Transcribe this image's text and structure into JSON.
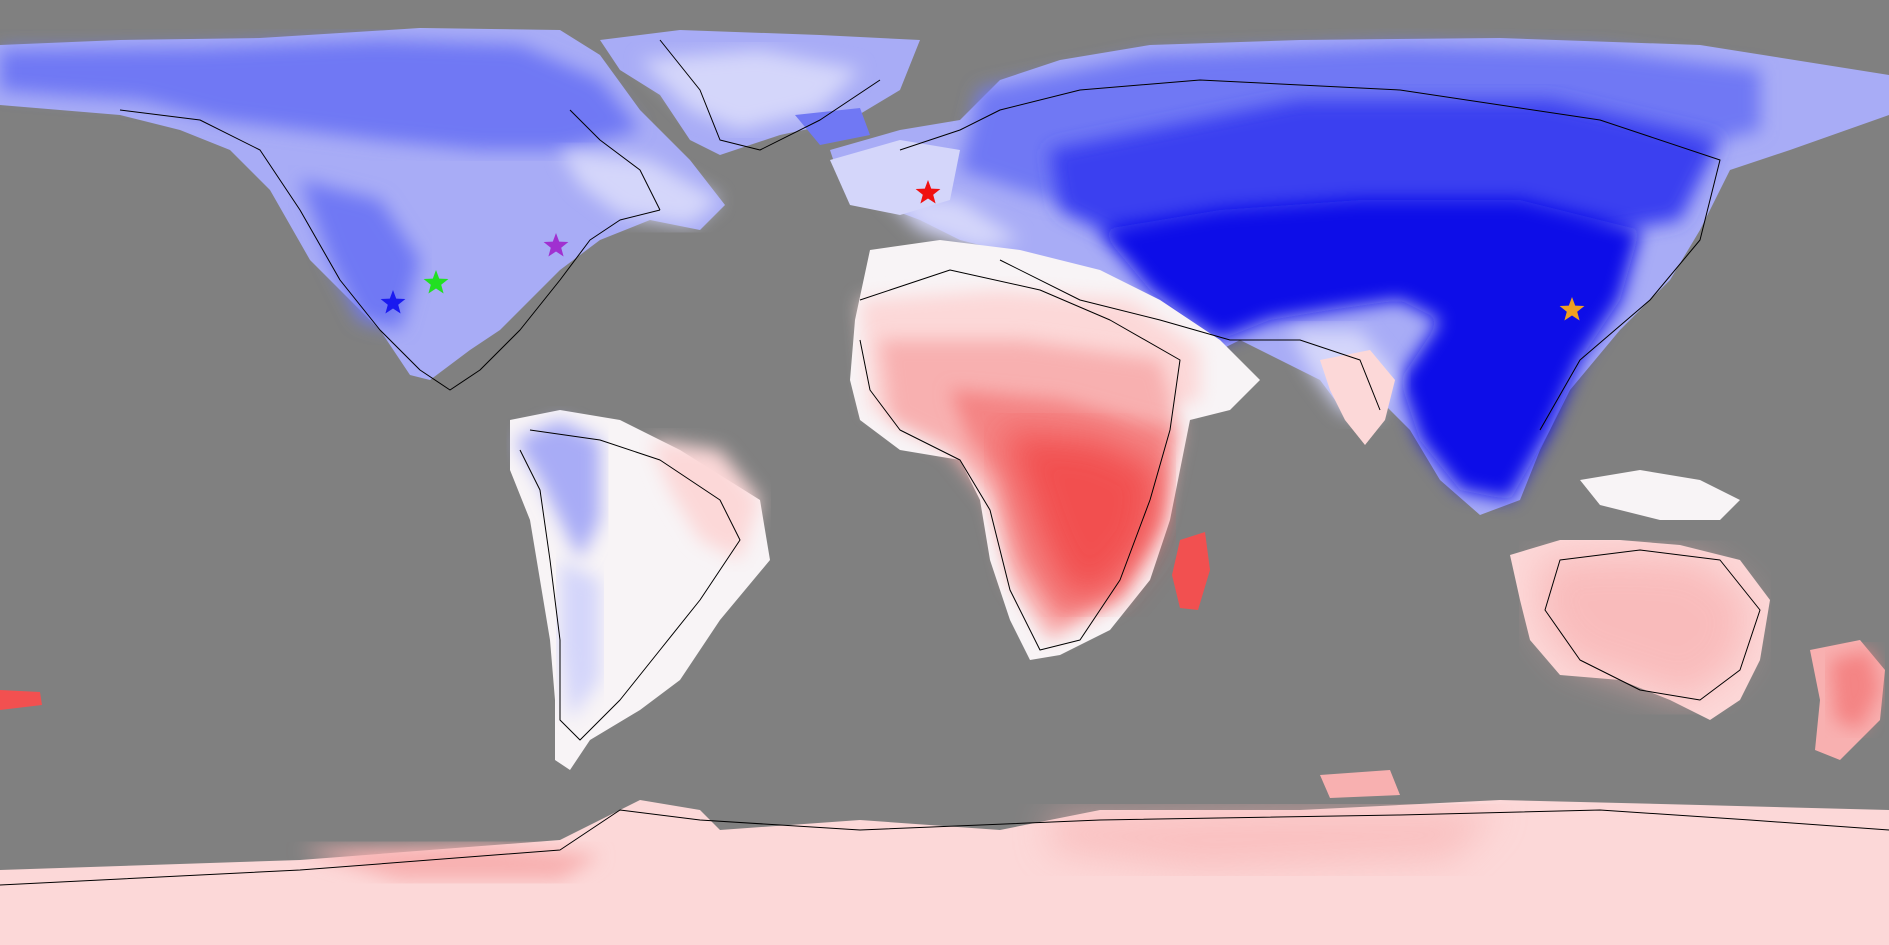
{
  "map": {
    "ocean_color": "#808080",
    "coast_color": "#000000",
    "palette": {
      "deep_blue": "#0a10e8",
      "blue": "#3a40f0",
      "mid_blue": "#7078f4",
      "light_blue": "#a8acf6",
      "pale_blue": "#d4d6fa",
      "white": "#f8f4f6",
      "pale_red": "#fcd8d8",
      "light_red": "#f8b0b0",
      "mid_red": "#f48484",
      "red": "#f25050"
    },
    "markers": [
      {
        "name": "blue-star-marker",
        "color": "#1a1af0"
      },
      {
        "name": "green-star-marker",
        "color": "#22e022"
      },
      {
        "name": "purple-star-marker",
        "color": "#a030d0"
      },
      {
        "name": "red-star-marker",
        "color": "#f01010"
      },
      {
        "name": "orange-star-marker",
        "color": "#f0a020"
      }
    ]
  }
}
